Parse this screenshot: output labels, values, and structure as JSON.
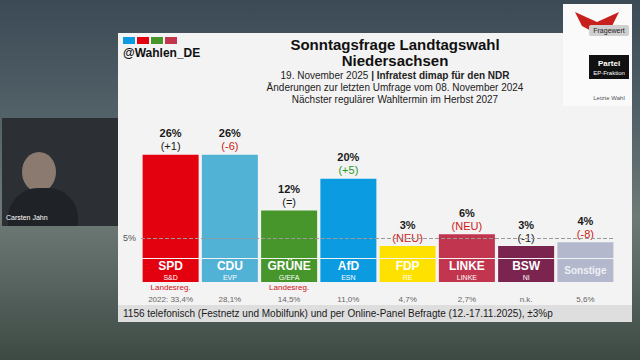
{
  "handle": "@Wahlen_DE",
  "overlay_name": "Carsten Jahn",
  "key": {
    "value": "Fragewert",
    "party": "Partei",
    "fraction": "EP-Fraktion",
    "last": "Letzte Wahl"
  },
  "footer": "1156 telefonisch (Festnetz und Mobilfunk) und per Online-Panel Befragte (12.-17.11.2025), ±3%p",
  "chart_data": {
    "type": "bar",
    "title": "Sonntagsfrage Landtagswahl Niedersachsen",
    "subtitle": [
      "19. November 2025 | Infratest dimap für den NDR",
      "Änderungen zur letzten Umfrage vom 08. November 2024",
      "Nächster regulärer Wahltermin im Herbst 2027"
    ],
    "categories": [
      "SPD",
      "CDU",
      "GRÜNE",
      "AfD",
      "FDP",
      "LINKE",
      "BSW",
      "Sonstige"
    ],
    "ep_groups": [
      "S&D",
      "EVP",
      "G/EFA",
      "ESN",
      "RE",
      "LINKE",
      "NI",
      null
    ],
    "values": [
      26,
      26,
      12,
      20,
      3,
      6,
      3,
      4
    ],
    "value_labels": [
      "26%",
      "26%",
      "12%",
      "20%",
      "3%",
      "6%",
      "3%",
      "4%"
    ],
    "changes": [
      "(+1)",
      "(-6)",
      "(=)",
      "(+5)",
      "(NEU)",
      "(NEU)",
      "(-1)",
      "(-8)"
    ],
    "government": [
      "Landesreg.",
      null,
      "Landesreg.",
      null,
      null,
      null,
      null,
      null
    ],
    "last_election": [
      "2022: 33,4%",
      "28,1%",
      "14,5%",
      "11,0%",
      "4,7%",
      "2,7%",
      "n.k.",
      "5,6%"
    ],
    "colors": [
      "#e3000f",
      "#52b2d6",
      "#46962b",
      "#0a9be0",
      "#ffe100",
      "#c2354f",
      "#7b2450",
      "#b4b8cc"
    ],
    "ylim": [
      0,
      30
    ],
    "threshold": {
      "value": 5,
      "label": "5%"
    },
    "data_labels": true,
    "grid": false,
    "tick_labels": "x"
  }
}
